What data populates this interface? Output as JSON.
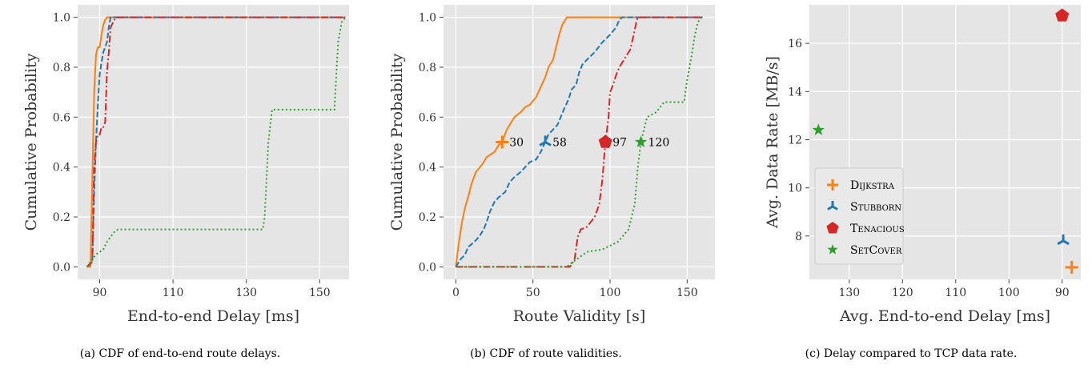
{
  "figure": {
    "captions": [
      "(a) CDF of end-to-end route delays.",
      "(b) CDF of route validities.",
      "(c) Delay compared to TCP data rate."
    ]
  },
  "colors": {
    "dijkstra": "#ff7f0e",
    "stubborn": "#1f77b4",
    "tenacious": "#d62728",
    "setcover": "#2ca02c",
    "panel_bg": "#e5e5e5",
    "grid": "#ffffff"
  },
  "chart_data": [
    {
      "id": "a",
      "type": "line",
      "xlabel": "End-to-end Delay [ms]",
      "ylabel": "Cumulative Probability",
      "xlim": [
        84,
        158
      ],
      "ylim": [
        -0.05,
        1.05
      ],
      "xticks": [
        90,
        110,
        130,
        150
      ],
      "yticks": [
        0.0,
        0.2,
        0.4,
        0.6,
        0.8,
        1.0
      ],
      "grid": true,
      "series": [
        {
          "key": "dijkstra",
          "style": "solid",
          "points": [
            [
              86.5,
              0
            ],
            [
              87.5,
              0
            ],
            [
              88,
              0.35
            ],
            [
              88.5,
              0.7
            ],
            [
              89,
              0.85
            ],
            [
              89.5,
              0.88
            ],
            [
              90,
              0.88
            ],
            [
              90.5,
              0.93
            ],
            [
              91,
              0.97
            ],
            [
              91.5,
              0.99
            ],
            [
              92,
              1
            ],
            [
              157,
              1
            ]
          ]
        },
        {
          "key": "stubborn",
          "style": "dashed",
          "points": [
            [
              86.5,
              0
            ],
            [
              88,
              0.02
            ],
            [
              88.5,
              0.3
            ],
            [
              89,
              0.5
            ],
            [
              89.5,
              0.65
            ],
            [
              90,
              0.77
            ],
            [
              90.5,
              0.82
            ],
            [
              91,
              0.86
            ],
            [
              92,
              0.9
            ],
            [
              92.5,
              0.96
            ],
            [
              93,
              1
            ],
            [
              157,
              1
            ]
          ]
        },
        {
          "key": "tenacious",
          "style": "dashdot",
          "points": [
            [
              86.5,
              0
            ],
            [
              88,
              0.02
            ],
            [
              88.5,
              0.4
            ],
            [
              89,
              0.5
            ],
            [
              89.5,
              0.53
            ],
            [
              90,
              0.53
            ],
            [
              90.5,
              0.56
            ],
            [
              91,
              0.56
            ],
            [
              91.5,
              0.58
            ],
            [
              92,
              0.78
            ],
            [
              92.5,
              0.86
            ],
            [
              93,
              0.96
            ],
            [
              94,
              0.99
            ],
            [
              95,
              1
            ],
            [
              157,
              1
            ]
          ]
        },
        {
          "key": "setcover",
          "style": "dotted",
          "points": [
            [
              86.5,
              0
            ],
            [
              88,
              0.03
            ],
            [
              89,
              0.05
            ],
            [
              90,
              0.06
            ],
            [
              91,
              0.07
            ],
            [
              92,
              0.1
            ],
            [
              93,
              0.12
            ],
            [
              94,
              0.14
            ],
            [
              95,
              0.15
            ],
            [
              134.5,
              0.15
            ],
            [
              135,
              0.2
            ],
            [
              136,
              0.5
            ],
            [
              137,
              0.63
            ],
            [
              154,
              0.63
            ],
            [
              155,
              0.9
            ],
            [
              156,
              0.98
            ],
            [
              157,
              1
            ]
          ]
        }
      ]
    },
    {
      "id": "b",
      "type": "line",
      "xlabel": "Route Validity [s]",
      "ylabel": "Cumulative Probability",
      "xlim": [
        -8,
        168
      ],
      "ylim": [
        -0.05,
        1.05
      ],
      "xticks": [
        0,
        50,
        100,
        150
      ],
      "yticks": [
        0.0,
        0.2,
        0.4,
        0.6,
        0.8,
        1.0
      ],
      "grid": true,
      "series": [
        {
          "key": "dijkstra",
          "style": "solid",
          "points": [
            [
              0,
              0
            ],
            [
              1,
              0.05
            ],
            [
              2,
              0.1
            ],
            [
              4,
              0.18
            ],
            [
              6,
              0.24
            ],
            [
              8,
              0.28
            ],
            [
              10,
              0.33
            ],
            [
              13,
              0.38
            ],
            [
              17,
              0.41
            ],
            [
              20,
              0.44
            ],
            [
              25,
              0.46
            ],
            [
              28,
              0.49
            ],
            [
              30,
              0.5
            ],
            [
              33,
              0.55
            ],
            [
              35,
              0.57
            ],
            [
              38,
              0.6
            ],
            [
              42,
              0.62
            ],
            [
              45,
              0.64
            ],
            [
              48,
              0.65
            ],
            [
              52,
              0.68
            ],
            [
              55,
              0.72
            ],
            [
              58,
              0.76
            ],
            [
              60,
              0.8
            ],
            [
              63,
              0.83
            ],
            [
              65,
              0.88
            ],
            [
              67,
              0.93
            ],
            [
              69,
              0.97
            ],
            [
              72,
              1
            ],
            [
              160,
              1
            ]
          ]
        },
        {
          "key": "stubborn",
          "style": "dashed",
          "points": [
            [
              0,
              0
            ],
            [
              3,
              0.03
            ],
            [
              6,
              0.05
            ],
            [
              8,
              0.08
            ],
            [
              10,
              0.09
            ],
            [
              12,
              0.1
            ],
            [
              15,
              0.12
            ],
            [
              18,
              0.15
            ],
            [
              20,
              0.18
            ],
            [
              22,
              0.22
            ],
            [
              25,
              0.26
            ],
            [
              28,
              0.28
            ],
            [
              32,
              0.3
            ],
            [
              35,
              0.34
            ],
            [
              38,
              0.36
            ],
            [
              42,
              0.38
            ],
            [
              45,
              0.4
            ],
            [
              48,
              0.42
            ],
            [
              52,
              0.43
            ],
            [
              55,
              0.46
            ],
            [
              58,
              0.5
            ],
            [
              60,
              0.53
            ],
            [
              63,
              0.55
            ],
            [
              66,
              0.57
            ],
            [
              68,
              0.6
            ],
            [
              70,
              0.63
            ],
            [
              73,
              0.67
            ],
            [
              75,
              0.71
            ],
            [
              78,
              0.73
            ],
            [
              80,
              0.78
            ],
            [
              82,
              0.81
            ],
            [
              85,
              0.83
            ],
            [
              90,
              0.86
            ],
            [
              95,
              0.9
            ],
            [
              100,
              0.93
            ],
            [
              104,
              0.96
            ],
            [
              106,
              0.99
            ],
            [
              108,
              1
            ],
            [
              160,
              1
            ]
          ]
        },
        {
          "key": "tenacious",
          "style": "dashdot",
          "points": [
            [
              0,
              0
            ],
            [
              74,
              0
            ],
            [
              77,
              0.03
            ],
            [
              79,
              0.12
            ],
            [
              81,
              0.15
            ],
            [
              85,
              0.16
            ],
            [
              90,
              0.2
            ],
            [
              93,
              0.25
            ],
            [
              95,
              0.35
            ],
            [
              97,
              0.5
            ],
            [
              99,
              0.6
            ],
            [
              100,
              0.7
            ],
            [
              102,
              0.73
            ],
            [
              104,
              0.77
            ],
            [
              106,
              0.8
            ],
            [
              110,
              0.84
            ],
            [
              113,
              0.87
            ],
            [
              115,
              0.92
            ],
            [
              117,
              0.98
            ],
            [
              118,
              1
            ],
            [
              160,
              1
            ]
          ]
        },
        {
          "key": "setcover",
          "style": "dotted",
          "points": [
            [
              0,
              0
            ],
            [
              72,
              0
            ],
            [
              76,
              0.02
            ],
            [
              85,
              0.06
            ],
            [
              95,
              0.07
            ],
            [
              105,
              0.1
            ],
            [
              112,
              0.15
            ],
            [
              116,
              0.25
            ],
            [
              118,
              0.4
            ],
            [
              120,
              0.5
            ],
            [
              122,
              0.55
            ],
            [
              124,
              0.6
            ],
            [
              130,
              0.62
            ],
            [
              135,
              0.66
            ],
            [
              148,
              0.66
            ],
            [
              150,
              0.75
            ],
            [
              153,
              0.85
            ],
            [
              155,
              0.93
            ],
            [
              157,
              0.98
            ],
            [
              159,
              1
            ]
          ]
        }
      ],
      "markers": [
        {
          "key": "dijkstra",
          "shape": "plus",
          "x": 30,
          "y": 0.5,
          "label": "30"
        },
        {
          "key": "stubborn",
          "shape": "tri",
          "x": 58,
          "y": 0.5,
          "label": "58"
        },
        {
          "key": "tenacious",
          "shape": "pentagon",
          "x": 97,
          "y": 0.5,
          "label": "97"
        },
        {
          "key": "setcover",
          "shape": "star",
          "x": 120,
          "y": 0.5,
          "label": "120"
        }
      ]
    },
    {
      "id": "c",
      "type": "scatter",
      "xlabel": "Avg. End-to-end Delay [ms]",
      "ylabel": "Avg. Data Rate [MB/s]",
      "xlim": [
        137.5,
        86.5
      ],
      "ylim": [
        6.2,
        17.6
      ],
      "x_inverted": true,
      "xticks": [
        130,
        120,
        110,
        100,
        90
      ],
      "yticks": [
        8,
        10,
        12,
        14,
        16
      ],
      "grid": true,
      "legend_position": "lower-left",
      "points": [
        {
          "key": "dijkstra",
          "shape": "plus",
          "x": 88.2,
          "y": 6.7
        },
        {
          "key": "stubborn",
          "shape": "tri",
          "x": 89.8,
          "y": 7.8
        },
        {
          "key": "tenacious",
          "shape": "pentagon",
          "x": 90,
          "y": 17.15
        },
        {
          "key": "setcover",
          "shape": "star",
          "x": 135.8,
          "y": 12.4
        }
      ],
      "legend": [
        {
          "key": "dijkstra",
          "shape": "plus",
          "label": "Dijkstra"
        },
        {
          "key": "stubborn",
          "shape": "tri",
          "label": "Stubborn"
        },
        {
          "key": "tenacious",
          "shape": "pentagon",
          "label": "Tenacious"
        },
        {
          "key": "setcover",
          "shape": "star",
          "label": "SetCover"
        }
      ]
    }
  ]
}
